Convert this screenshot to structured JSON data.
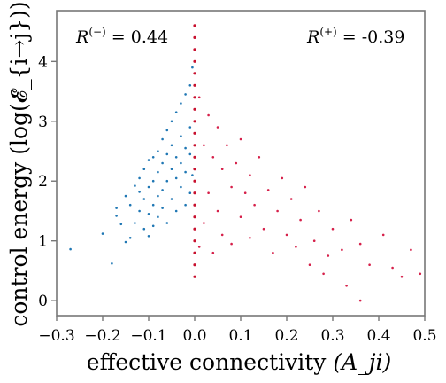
{
  "chart_data": {
    "type": "scatter",
    "xlabel": "effective connectivity",
    "xlabel_math": "(A_ji)",
    "ylabel": "control energy (log(𝓔_{i→j}))",
    "xlim": [
      -0.3,
      0.5
    ],
    "ylim": [
      -0.25,
      4.85
    ],
    "x_ticks": [
      -0.3,
      -0.2,
      -0.1,
      0.0,
      0.1,
      0.2,
      0.3,
      0.4,
      0.5
    ],
    "y_ticks": [
      0,
      1,
      2,
      3,
      4
    ],
    "x_tick_labels": [
      "−0.3",
      "−0.2",
      "−0.1",
      "0.0",
      "0.1",
      "0.2",
      "0.3",
      "0.4",
      "0.5"
    ],
    "y_tick_labels": [
      "0",
      "1",
      "2",
      "3",
      "4"
    ],
    "annotations": {
      "left": {
        "sym": "R",
        "sup": "(−)",
        "text": " = 0.44"
      },
      "right": {
        "sym": "R",
        "sup": "(+)",
        "text": " = -0.39"
      }
    },
    "series": [
      {
        "color": "#1f77b4",
        "points": [
          [
            -0.27,
            0.86
          ],
          [
            -0.2,
            1.12
          ],
          [
            -0.18,
            0.62
          ],
          [
            -0.17,
            1.42
          ],
          [
            -0.17,
            1.55
          ],
          [
            -0.16,
            1.28
          ],
          [
            -0.15,
            0.98
          ],
          [
            -0.15,
            1.75
          ],
          [
            -0.14,
            1.6
          ],
          [
            -0.14,
            1.05
          ],
          [
            -0.13,
            1.92
          ],
          [
            -0.13,
            1.3
          ],
          [
            -0.12,
            1.5
          ],
          [
            -0.12,
            1.82
          ],
          [
            -0.12,
            2.05
          ],
          [
            -0.11,
            1.2
          ],
          [
            -0.11,
            1.7
          ],
          [
            -0.11,
            2.2
          ],
          [
            -0.1,
            1.45
          ],
          [
            -0.1,
            1.9
          ],
          [
            -0.1,
            1.08
          ],
          [
            -0.1,
            2.35
          ],
          [
            -0.09,
            1.6
          ],
          [
            -0.09,
            2.0
          ],
          [
            -0.09,
            2.4
          ],
          [
            -0.09,
            1.25
          ],
          [
            -0.08,
            1.75
          ],
          [
            -0.08,
            2.15
          ],
          [
            -0.08,
            2.5
          ],
          [
            -0.08,
            1.4
          ],
          [
            -0.07,
            1.85
          ],
          [
            -0.07,
            2.3
          ],
          [
            -0.07,
            2.7
          ],
          [
            -0.07,
            1.55
          ],
          [
            -0.06,
            2.0
          ],
          [
            -0.06,
            2.45
          ],
          [
            -0.06,
            1.3
          ],
          [
            -0.06,
            2.85
          ],
          [
            -0.05,
            1.7
          ],
          [
            -0.05,
            2.2
          ],
          [
            -0.05,
            2.6
          ],
          [
            -0.05,
            3.0
          ],
          [
            -0.04,
            1.5
          ],
          [
            -0.04,
            2.05
          ],
          [
            -0.04,
            2.4
          ],
          [
            -0.04,
            3.15
          ],
          [
            -0.03,
            1.9
          ],
          [
            -0.03,
            2.3
          ],
          [
            -0.03,
            2.75
          ],
          [
            -0.03,
            3.3
          ],
          [
            -0.02,
            1.6
          ],
          [
            -0.02,
            2.15
          ],
          [
            -0.02,
            2.55
          ],
          [
            -0.02,
            3.45
          ],
          [
            -0.01,
            1.8
          ],
          [
            -0.01,
            2.45
          ],
          [
            -0.01,
            2.9
          ],
          [
            -0.01,
            3.6
          ],
          [
            -0.005,
            2.1
          ],
          [
            -0.005,
            3.9
          ]
        ]
      },
      {
        "color": "#d6204a",
        "points": [
          [
            0.01,
            3.4
          ],
          [
            0.01,
            0.9
          ],
          [
            0.02,
            2.6
          ],
          [
            0.02,
            1.3
          ],
          [
            0.03,
            3.1
          ],
          [
            0.03,
            1.8
          ],
          [
            0.04,
            2.4
          ],
          [
            0.04,
            0.8
          ],
          [
            0.05,
            2.9
          ],
          [
            0.05,
            1.5
          ],
          [
            0.06,
            2.2
          ],
          [
            0.06,
            1.1
          ],
          [
            0.07,
            2.6
          ],
          [
            0.08,
            1.9
          ],
          [
            0.08,
            0.95
          ],
          [
            0.09,
            2.3
          ],
          [
            0.1,
            1.4
          ],
          [
            0.1,
            2.7
          ],
          [
            0.11,
            1.8
          ],
          [
            0.12,
            1.05
          ],
          [
            0.12,
            2.1
          ],
          [
            0.13,
            1.6
          ],
          [
            0.14,
            2.4
          ],
          [
            0.15,
            1.2
          ],
          [
            0.16,
            1.85
          ],
          [
            0.17,
            0.8
          ],
          [
            0.18,
            1.5
          ],
          [
            0.19,
            2.05
          ],
          [
            0.2,
            1.1
          ],
          [
            0.21,
            1.7
          ],
          [
            0.22,
            0.9
          ],
          [
            0.23,
            1.35
          ],
          [
            0.24,
            1.9
          ],
          [
            0.26,
            1.0
          ],
          [
            0.27,
            1.5
          ],
          [
            0.29,
            0.75
          ],
          [
            0.3,
            1.2
          ],
          [
            0.32,
            0.85
          ],
          [
            0.34,
            1.35
          ],
          [
            0.36,
            0.95
          ],
          [
            0.38,
            0.6
          ],
          [
            0.41,
            1.1
          ],
          [
            0.43,
            0.55
          ],
          [
            0.45,
            0.4
          ],
          [
            0.47,
            0.85
          ],
          [
            0.49,
            0.45
          ],
          [
            0.36,
            0.0
          ],
          [
            0.33,
            0.25
          ],
          [
            0.28,
            0.45
          ],
          [
            0.25,
            0.6
          ]
        ]
      },
      {
        "color": "#c8102e",
        "points": [
          [
            0.0,
            0.4
          ],
          [
            0.0,
            0.6
          ],
          [
            0.0,
            0.8
          ],
          [
            0.0,
            1.0
          ],
          [
            0.0,
            1.2
          ],
          [
            0.0,
            1.4
          ],
          [
            0.0,
            1.6
          ],
          [
            0.0,
            1.8
          ],
          [
            0.0,
            2.0
          ],
          [
            0.0,
            2.2
          ],
          [
            0.0,
            2.4
          ],
          [
            0.0,
            2.6
          ],
          [
            0.0,
            2.8
          ],
          [
            0.0,
            3.0
          ],
          [
            0.0,
            3.2
          ],
          [
            0.0,
            3.4
          ],
          [
            0.0,
            3.6
          ],
          [
            0.0,
            3.8
          ],
          [
            0.0,
            4.0
          ],
          [
            0.0,
            4.2
          ],
          [
            0.0,
            4.4
          ],
          [
            0.0,
            4.6
          ]
        ]
      }
    ]
  }
}
